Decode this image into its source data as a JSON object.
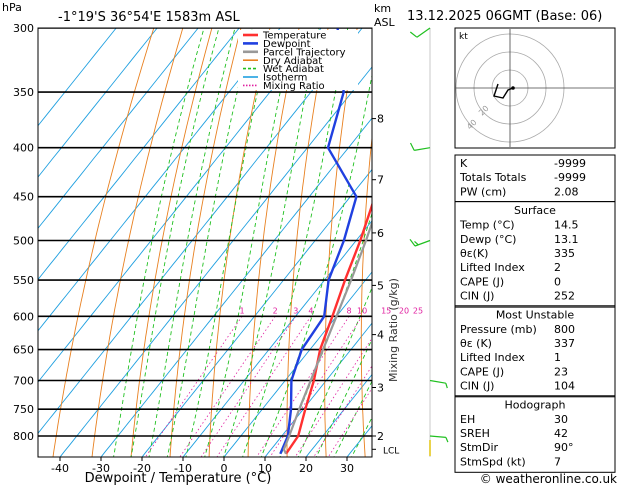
{
  "header": {
    "unit_hpa": "hPa",
    "location": "-1°19'S  36°54'E  1583m  ASL",
    "unit_km": "km",
    "unit_asl": "ASL",
    "datetime": "13.12.2025  06GMT  (Base: 06)"
  },
  "legend": [
    {
      "label": "Temperature",
      "color": "#ff3030",
      "width": 2
    },
    {
      "label": "Dewpoint",
      "color": "#2040e0",
      "width": 2
    },
    {
      "label": "Parcel Trajectory",
      "color": "#999999",
      "width": 2
    },
    {
      "label": "Dry Adiabat",
      "color": "#e88020",
      "width": 1
    },
    {
      "label": "Wet Adiabat",
      "color": "#20c020",
      "width": 1
    },
    {
      "label": "Isotherm",
      "color": "#20a0e0",
      "width": 1
    },
    {
      "label": "Mixing Ratio",
      "color": "#e020a0",
      "width": 1
    }
  ],
  "chart_data": {
    "type": "line",
    "title": "Skew-T log-P",
    "xlabel": "Dewpoint / Temperature (°C)",
    "ylabel": "hPa",
    "pressure_levels": [
      300,
      350,
      400,
      450,
      500,
      550,
      600,
      650,
      700,
      750,
      800
    ],
    "pressure_labels": [
      "300",
      "350",
      "400",
      "450",
      "500",
      "550",
      "600",
      "650",
      "700",
      "750",
      "800"
    ],
    "temp_ticks": [
      -40,
      -30,
      -20,
      -10,
      0,
      10,
      20,
      30
    ],
    "temp_tick_labels": [
      "-40",
      "-30",
      "-20",
      "-10",
      "0",
      "10",
      "20",
      "30"
    ],
    "km_ticks": [
      {
        "label": "8",
        "p": 373
      },
      {
        "label": "7",
        "p": 432
      },
      {
        "label": "6",
        "p": 491
      },
      {
        "label": "5",
        "p": 557
      },
      {
        "label": "4",
        "p": 627
      },
      {
        "label": "3",
        "p": 712
      },
      {
        "label": "2",
        "p": 800
      },
      {
        "label": "LCL",
        "p": 826
      }
    ],
    "mixing_ratio_labels": [
      "1",
      "2",
      "3",
      "4",
      "8",
      "10",
      "15",
      "20",
      "25"
    ],
    "mixing_ratio_values": [
      1,
      2,
      3,
      4,
      8,
      10,
      15,
      20,
      25
    ],
    "mixing_ratio_axis_label": "Mixing Ratio (g/kg)",
    "series": [
      {
        "name": "Temperature",
        "points": [
          [
            835,
            14.5
          ],
          [
            800,
            14.0
          ],
          [
            750,
            10.5
          ],
          [
            700,
            7.0
          ],
          [
            650,
            2.5
          ],
          [
            600,
            -1.0
          ],
          [
            550,
            -5.0
          ],
          [
            500,
            -9.0
          ],
          [
            450,
            -14.0
          ],
          [
            400,
            -20.0
          ],
          [
            350,
            -27.0
          ],
          [
            300,
            -36.0
          ]
        ]
      },
      {
        "name": "Dewpoint",
        "points": [
          [
            835,
            13.1
          ],
          [
            800,
            11.5
          ],
          [
            750,
            7.0
          ],
          [
            700,
            1.5
          ],
          [
            650,
            -2.0
          ],
          [
            600,
            -3.0
          ],
          [
            550,
            -9.0
          ],
          [
            500,
            -13.0
          ],
          [
            450,
            -18.5
          ],
          [
            400,
            -35.0
          ],
          [
            350,
            -42.0
          ],
          [
            300,
            -56.0
          ]
        ]
      },
      {
        "name": "Parcel Trajectory",
        "points": [
          [
            835,
            14.5
          ],
          [
            826,
            13.1
          ],
          [
            800,
            11.8
          ],
          [
            750,
            9.0
          ],
          [
            700,
            6.2
          ],
          [
            650,
            3.2
          ],
          [
            600,
            0.0
          ],
          [
            550,
            -3.5
          ],
          [
            500,
            -7.6
          ],
          [
            450,
            -12.5
          ],
          [
            400,
            -18.5
          ],
          [
            350,
            -26.0
          ],
          [
            300,
            -35.5
          ]
        ]
      }
    ]
  },
  "wind_barbs": [
    {
      "p": 300,
      "dir": 235,
      "kt": 10
    },
    {
      "p": 400,
      "dir": 260,
      "kt": 10
    },
    {
      "p": 500,
      "dir": 250,
      "kt": 15
    },
    {
      "p": 700,
      "dir": 100,
      "kt": 5
    },
    {
      "p": 800,
      "dir": 95,
      "kt": 5
    }
  ],
  "hodograph": {
    "unit": "kt",
    "ring_labels": [
      "20",
      "40"
    ]
  },
  "indices": {
    "rows": [
      {
        "label": "K",
        "value": "-9999"
      },
      {
        "label": "Totals Totals",
        "value": "-9999"
      },
      {
        "label": "PW (cm)",
        "value": "2.08"
      }
    ],
    "surface": {
      "title": "Surface",
      "rows": [
        {
          "label": "Temp (°C)",
          "value": "14.5"
        },
        {
          "label": "Dewp (°C)",
          "value": "13.1"
        },
        {
          "label": "θε(K)",
          "value": "335"
        },
        {
          "label": "Lifted Index",
          "value": "2"
        },
        {
          "label": "CAPE (J)",
          "value": "0"
        },
        {
          "label": "CIN (J)",
          "value": "252"
        }
      ]
    },
    "most_unstable": {
      "title": "Most Unstable",
      "rows": [
        {
          "label": "Pressure (mb)",
          "value": "800"
        },
        {
          "label": "θε (K)",
          "value": "337"
        },
        {
          "label": "Lifted Index",
          "value": "1"
        },
        {
          "label": "CAPE (J)",
          "value": "23"
        },
        {
          "label": "CIN (J)",
          "value": "104"
        }
      ]
    },
    "hodograph_box": {
      "title": "Hodograph",
      "rows": [
        {
          "label": "EH",
          "value": "30"
        },
        {
          "label": "SREH",
          "value": "42"
        },
        {
          "label": "StmDir",
          "value": "90°"
        },
        {
          "label": "StmSpd (kt)",
          "value": "7"
        }
      ]
    }
  },
  "footer": {
    "copyright": "© weatheronline.co.uk"
  }
}
